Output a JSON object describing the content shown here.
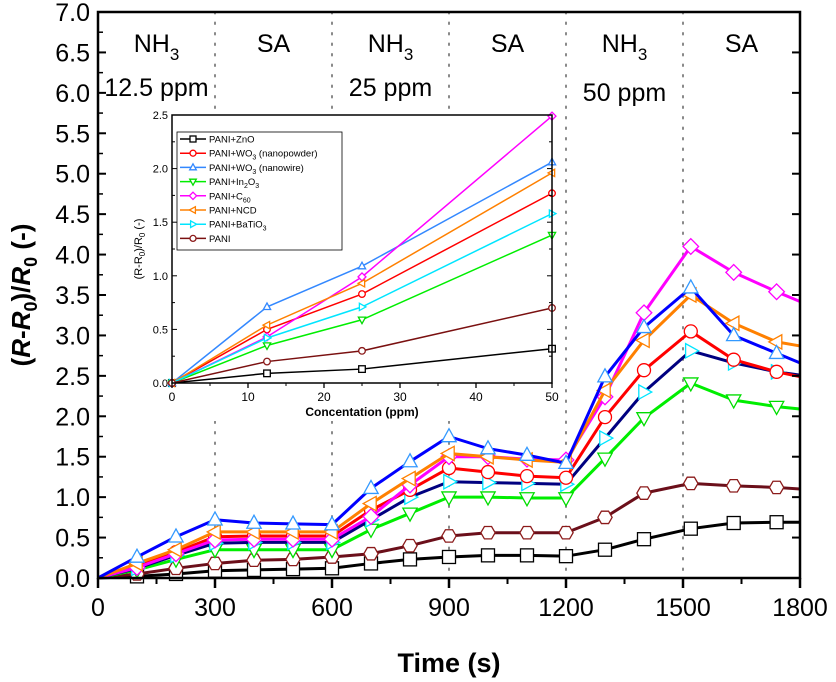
{
  "chart_data": [
    {
      "type": "line",
      "xlabel": "Time (s)",
      "ylabel": {
        "pre": "(",
        "r1": "R",
        "mid": "-",
        "r2": "R",
        "sub": "0",
        "post": ")/",
        "r3": "R",
        "sub2": "0",
        "tail": " (-)"
      },
      "xlim": [
        0,
        1800
      ],
      "ylim": [
        0,
        7.0
      ],
      "xticks": [
        0,
        300,
        600,
        900,
        1200,
        1500,
        1800
      ],
      "yticks": [
        "0.0",
        "0.5",
        "1.0",
        "1.5",
        "2.0",
        "2.5",
        "3.0",
        "3.5",
        "4.0",
        "4.5",
        "5.0",
        "5.5",
        "6.0",
        "6.5",
        "7.0"
      ],
      "grid": false,
      "phase_lines": [
        300,
        600,
        900,
        1200,
        1500
      ],
      "annotations": [
        {
          "text": "NH",
          "sub": "3",
          "x": 150,
          "row": 1
        },
        {
          "text": "SA",
          "x": 450,
          "row": 1
        },
        {
          "text": "NH",
          "sub": "3",
          "x": 750,
          "row": 1
        },
        {
          "text": "SA",
          "x": 1050,
          "row": 1
        },
        {
          "text": "NH",
          "sub": "3",
          "x": 1350,
          "row": 1
        },
        {
          "text": "SA",
          "x": 1650,
          "row": 1
        },
        {
          "text": "12.5 ppm",
          "x": 150,
          "row": 2
        },
        {
          "text": "25 ppm",
          "x": 750,
          "row": 2
        },
        {
          "text": "50 ppm",
          "x": 1350,
          "row": 3
        }
      ],
      "x": [
        0,
        100,
        200,
        300,
        400,
        500,
        600,
        700,
        800,
        900,
        1000,
        1100,
        1200,
        1300,
        1400,
        1520,
        1630,
        1740,
        1800
      ],
      "series": [
        {
          "name": "PANI+ZnO",
          "line": "#000000",
          "marker": "square",
          "mcolor": "#000000",
          "values": [
            0,
            0.02,
            0.05,
            0.09,
            0.1,
            0.11,
            0.12,
            0.18,
            0.23,
            0.26,
            0.28,
            0.28,
            0.27,
            0.35,
            0.48,
            0.61,
            0.68,
            0.69,
            0.69
          ]
        },
        {
          "name": "PANI",
          "line": "#6b0f1a",
          "marker": "hexagon",
          "mcolor": "#8b1a1a",
          "values": [
            0,
            0.05,
            0.12,
            0.18,
            0.22,
            0.23,
            0.26,
            0.3,
            0.4,
            0.52,
            0.56,
            0.56,
            0.56,
            0.75,
            1.05,
            1.17,
            1.14,
            1.12,
            1.1
          ]
        },
        {
          "name": "PANI+In2O3",
          "line": "#00ee00",
          "marker": "tri-down",
          "mcolor": "#00dd00",
          "values": [
            0,
            0.1,
            0.23,
            0.35,
            0.35,
            0.35,
            0.35,
            0.6,
            0.8,
            1.0,
            1.0,
            0.99,
            0.99,
            1.48,
            1.98,
            2.41,
            2.2,
            2.12,
            2.09
          ]
        },
        {
          "name": "PANI+BaTiO3",
          "line": "#000080",
          "marker": "tri-right",
          "mcolor": "#00e5ff",
          "values": [
            0,
            0.12,
            0.28,
            0.43,
            0.44,
            0.44,
            0.44,
            0.72,
            1.0,
            1.19,
            1.18,
            1.17,
            1.16,
            1.73,
            2.3,
            2.81,
            2.66,
            2.55,
            2.51
          ]
        },
        {
          "name": "PANI+WO3 (nanopowder)",
          "line": "#ff0000",
          "marker": "circle",
          "mcolor": "#ff0000",
          "values": [
            0,
            0.15,
            0.32,
            0.51,
            0.52,
            0.52,
            0.52,
            0.84,
            1.09,
            1.36,
            1.31,
            1.26,
            1.24,
            1.99,
            2.57,
            3.05,
            2.7,
            2.55,
            2.49
          ]
        },
        {
          "name": "PANI+C60",
          "line": "#ff00ff",
          "marker": "diamond",
          "mcolor": "#ff00ff",
          "values": [
            0,
            0.13,
            0.3,
            0.47,
            0.48,
            0.48,
            0.48,
            0.76,
            1.15,
            1.5,
            1.5,
            1.47,
            1.46,
            2.24,
            3.28,
            4.1,
            3.78,
            3.54,
            3.42
          ]
        },
        {
          "name": "PANI+NCD",
          "line": "#ff8000",
          "marker": "tri-left",
          "mcolor": "#ff8000",
          "values": [
            0,
            0.18,
            0.35,
            0.57,
            0.57,
            0.57,
            0.57,
            0.92,
            1.23,
            1.54,
            1.5,
            1.46,
            1.43,
            2.32,
            2.94,
            3.5,
            3.15,
            2.92,
            2.87
          ]
        },
        {
          "name": "PANI+WO3 (nanowire)",
          "line": "#0000ff",
          "marker": "tri-up",
          "mcolor": "#3399ff",
          "values": [
            0,
            0.26,
            0.51,
            0.72,
            0.68,
            0.67,
            0.66,
            1.11,
            1.44,
            1.75,
            1.6,
            1.52,
            1.42,
            2.49,
            3.1,
            3.59,
            3.0,
            2.78,
            2.66
          ]
        }
      ]
    },
    {
      "type": "line",
      "xlabel": "Concentation (ppm)",
      "ylabel": {
        "pre": "(R-R",
        "sub": "0",
        "mid": ")/R",
        "sub2": "0",
        "tail": " (-)"
      },
      "xlim": [
        0,
        50
      ],
      "ylim": [
        0,
        2.5
      ],
      "xticks": [
        0,
        10,
        20,
        30,
        40,
        50
      ],
      "yticks": [
        "0.0",
        "0.5",
        "1.0",
        "1.5",
        "2.0",
        "2.5"
      ],
      "legend_position": "top-left",
      "x": [
        0,
        12.5,
        25,
        50
      ],
      "series": [
        {
          "label": {
            "pre": "PANI+ZnO",
            "sub": "",
            "post": ""
          },
          "line": "#000000",
          "marker": "square",
          "mcolor": "#000000",
          "values": [
            0,
            0.09,
            0.13,
            0.32
          ]
        },
        {
          "label": {
            "pre": "PANI+WO",
            "sub": "3",
            "post": " (nanopowder)"
          },
          "line": "#ff0000",
          "marker": "circle",
          "mcolor": "#ff0000",
          "values": [
            0,
            0.5,
            0.83,
            1.77
          ]
        },
        {
          "label": {
            "pre": "PANI+WO",
            "sub": "3",
            "post": " (nanowire)"
          },
          "line": "#3388ff",
          "marker": "tri-up",
          "mcolor": "#3388ff",
          "values": [
            0,
            0.71,
            1.09,
            2.06
          ]
        },
        {
          "label": {
            "pre": "PANI+In",
            "sub": "2",
            "post": "O",
            "sub2": "3"
          },
          "line": "#00ee00",
          "marker": "tri-down",
          "mcolor": "#00dd00",
          "values": [
            0,
            0.35,
            0.59,
            1.38
          ]
        },
        {
          "label": {
            "pre": "PANI+C",
            "sub": "60",
            "post": ""
          },
          "line": "#ff00ff",
          "marker": "diamond",
          "mcolor": "#ff00ff",
          "values": [
            0,
            0.43,
            0.99,
            2.49
          ]
        },
        {
          "label": {
            "pre": "PANI+NCD",
            "sub": "",
            "post": ""
          },
          "line": "#ff8000",
          "marker": "tri-left",
          "mcolor": "#ff8000",
          "values": [
            0,
            0.54,
            0.93,
            1.96
          ]
        },
        {
          "label": {
            "pre": "PANI+BaTiO",
            "sub": "3",
            "post": ""
          },
          "line": "#00e5ff",
          "marker": "tri-right",
          "mcolor": "#00e5ff",
          "values": [
            0,
            0.42,
            0.71,
            1.58
          ]
        },
        {
          "label": {
            "pre": "PANI",
            "sub": "",
            "post": ""
          },
          "line": "#7a1010",
          "marker": "circle",
          "mcolor": "#8b1a1a",
          "values": [
            0,
            0.2,
            0.3,
            0.7
          ]
        }
      ]
    }
  ]
}
